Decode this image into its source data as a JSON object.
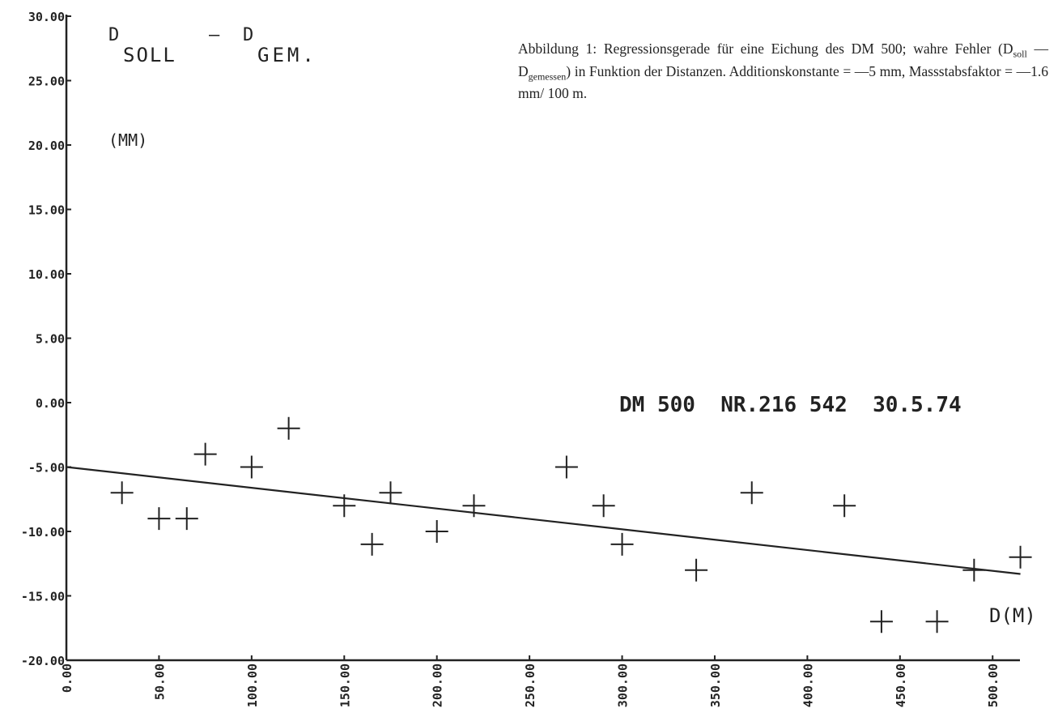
{
  "chart_data": {
    "type": "scatter",
    "title": "DM 500  NR.216 542  30.5.74",
    "ylabel": {
      "main": "D",
      "sub1": "SOLL",
      "dash": "—",
      "main2": "D",
      "sub2": "GEM.",
      "unit": "(MM)"
    },
    "xlabel": "D(M)",
    "xlim": [
      0,
      520
    ],
    "ylim": [
      -20,
      30
    ],
    "xticks": [
      0,
      50,
      100,
      150,
      200,
      250,
      300,
      350,
      400,
      450,
      500
    ],
    "xtick_labels": [
      "0.00",
      "50.00",
      "100.00",
      "150.00",
      "200.00",
      "250.00",
      "300.00",
      "350.00",
      "400.00",
      "450.00",
      "500.00"
    ],
    "yticks": [
      30,
      25,
      20,
      15,
      10,
      5,
      0,
      -5,
      -10,
      -15,
      -20
    ],
    "ytick_labels": [
      "30.00",
      "25.00",
      "20.00",
      "15.00",
      "10.00",
      "5.00",
      "0.00",
      "-5.00",
      "-10.00",
      "-15.00",
      "-20.00"
    ],
    "series": [
      {
        "marker": "plus",
        "points": [
          [
            30,
            -7
          ],
          [
            50,
            -9
          ],
          [
            65,
            -9
          ],
          [
            75,
            -4
          ],
          [
            100,
            -5
          ],
          [
            120,
            -2
          ],
          [
            150,
            -8
          ],
          [
            165,
            -11
          ],
          [
            175,
            -7
          ],
          [
            200,
            -10
          ],
          [
            220,
            -8
          ],
          [
            270,
            -5
          ],
          [
            290,
            -8
          ],
          [
            300,
            -11
          ],
          [
            340,
            -13
          ],
          [
            370,
            -7
          ],
          [
            420,
            -8
          ],
          [
            440,
            -17
          ],
          [
            470,
            -17
          ],
          [
            490,
            -13
          ],
          [
            515,
            -12
          ]
        ]
      }
    ],
    "regression_line": {
      "x": [
        0,
        515
      ],
      "y": [
        -5,
        -13.3
      ]
    },
    "grid": false,
    "legend": "none"
  },
  "caption": {
    "lead": "Abbildung 1:  Regressionsgerade für eine Eichung des DM 500; wahre Fehler (D",
    "sub1": "soll",
    "mid": " — D",
    "sub2": "gemessen",
    "tail": ") in Funktion der Distanzen. Additionskonstante  =  —5 mm,  Massstabsfaktor  =  —1.6 mm/ 100 m."
  }
}
